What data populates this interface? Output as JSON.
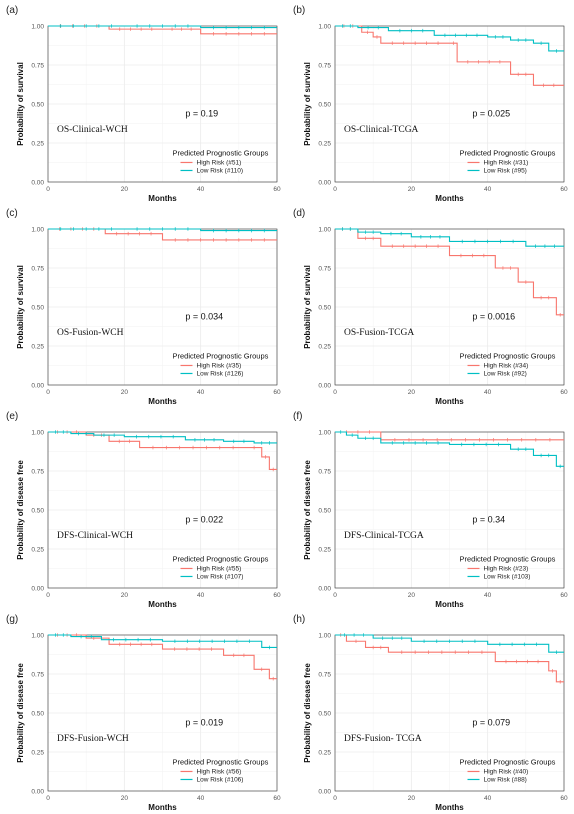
{
  "colors": {
    "high": "#F8766D",
    "low": "#00BFC4",
    "grid": "#EBEBEB",
    "axis": "#555555",
    "frame": "#333333"
  },
  "charts": [
    {
      "letter": "(a)",
      "label": "OS-Clinical-WCH",
      "pvalue": "p = 0.19",
      "ylabel": "Probability of survival",
      "xlabel": "Months",
      "legend_title": "Predicted Prognostic Groups",
      "chart_data": {
        "type": "line",
        "xlim": [
          0,
          60
        ],
        "ylim": [
          0,
          1
        ],
        "xticks": [
          "0",
          "20",
          "40",
          "60"
        ],
        "yticks": [
          "0.00",
          "0.25",
          "0.50",
          "0.75",
          "1.00"
        ],
        "series": [
          {
            "name": "High Risk (#51)",
            "color": "high",
            "x": [
              0,
              16,
              30,
              40,
              60
            ],
            "y": [
              1.0,
              0.98,
              0.98,
              0.95,
              0.95
            ]
          },
          {
            "name": "Low Risk (#110)",
            "color": "low",
            "x": [
              0,
              20,
              40,
              60
            ],
            "y": [
              1.0,
              1.0,
              0.99,
              0.99
            ]
          }
        ]
      }
    },
    {
      "letter": "(b)",
      "label": "OS-Clinical-TCGA",
      "pvalue": "p = 0.025",
      "ylabel": "Probability of survival",
      "xlabel": "Months",
      "legend_title": "Predicted Prognostic Groups",
      "chart_data": {
        "type": "line",
        "xlim": [
          0,
          60
        ],
        "ylim": [
          0,
          1
        ],
        "xticks": [
          "0",
          "20",
          "40",
          "60"
        ],
        "yticks": [
          "0.00",
          "0.25",
          "0.50",
          "0.75",
          "1.00"
        ],
        "series": [
          {
            "name": "High Risk (#31)",
            "color": "high",
            "x": [
              0,
              7,
              10,
              12,
              30,
              32,
              46,
              52,
              60
            ],
            "y": [
              1.0,
              0.96,
              0.93,
              0.89,
              0.89,
              0.77,
              0.69,
              0.62,
              0.62
            ]
          },
          {
            "name": "Low Risk (#95)",
            "color": "low",
            "x": [
              0,
              6,
              14,
              26,
              40,
              46,
              52,
              56,
              60
            ],
            "y": [
              1.0,
              0.99,
              0.97,
              0.94,
              0.93,
              0.91,
              0.89,
              0.84,
              0.84
            ]
          }
        ]
      }
    },
    {
      "letter": "(c)",
      "label": "OS-Fusion-WCH",
      "pvalue": "p = 0.034",
      "ylabel": "Probability of survival",
      "xlabel": "Months",
      "legend_title": "Predicted Prognostic Groups",
      "chart_data": {
        "type": "line",
        "xlim": [
          0,
          60
        ],
        "ylim": [
          0,
          1
        ],
        "xticks": [
          "0",
          "20",
          "40",
          "60"
        ],
        "yticks": [
          "0.00",
          "0.25",
          "0.50",
          "0.75",
          "1.00"
        ],
        "series": [
          {
            "name": "High Risk (#35)",
            "color": "high",
            "x": [
              0,
              15,
              30,
              60
            ],
            "y": [
              1.0,
              0.97,
              0.93,
              0.93
            ]
          },
          {
            "name": "Low Risk (#126)",
            "color": "low",
            "x": [
              0,
              20,
              40,
              60
            ],
            "y": [
              1.0,
              1.0,
              0.99,
              0.99
            ]
          }
        ]
      }
    },
    {
      "letter": "(d)",
      "label": "OS-Fusion-TCGA",
      "pvalue": "p = 0.0016",
      "ylabel": "Probability of survival",
      "xlabel": "Months",
      "legend_title": "Predicted Prognostic Groups",
      "chart_data": {
        "type": "line",
        "xlim": [
          0,
          60
        ],
        "ylim": [
          0,
          1
        ],
        "xticks": [
          "0",
          "20",
          "40",
          "60"
        ],
        "yticks": [
          "0.00",
          "0.25",
          "0.50",
          "0.75",
          "1.00"
        ],
        "series": [
          {
            "name": "High Risk (#34)",
            "color": "high",
            "x": [
              0,
              6,
              12,
              30,
              42,
              48,
              52,
              58,
              60
            ],
            "y": [
              1.0,
              0.94,
              0.89,
              0.83,
              0.75,
              0.66,
              0.56,
              0.45,
              0.45
            ]
          },
          {
            "name": "Low Risk (#92)",
            "color": "low",
            "x": [
              0,
              6,
              12,
              20,
              30,
              50,
              60
            ],
            "y": [
              1.0,
              0.98,
              0.97,
              0.95,
              0.92,
              0.89,
              0.89
            ]
          }
        ]
      }
    },
    {
      "letter": "(e)",
      "label": "DFS-Clinical-WCH",
      "pvalue": "p = 0.022",
      "ylabel": "Probability of disease free",
      "xlabel": "Months",
      "legend_title": "Predicted Prognostic Groups",
      "chart_data": {
        "type": "line",
        "xlim": [
          0,
          60
        ],
        "ylim": [
          0,
          1
        ],
        "xticks": [
          "0",
          "20",
          "40",
          "60"
        ],
        "yticks": [
          "0.00",
          "0.25",
          "0.50",
          "0.75",
          "1.00"
        ],
        "series": [
          {
            "name": "High Risk (#55)",
            "color": "high",
            "x": [
              0,
              10,
              16,
              24,
              52,
              56,
              58,
              60
            ],
            "y": [
              1.0,
              0.98,
              0.94,
              0.9,
              0.9,
              0.84,
              0.76,
              0.76
            ]
          },
          {
            "name": "Low Risk (#107)",
            "color": "low",
            "x": [
              0,
              6,
              12,
              20,
              36,
              46,
              54,
              60
            ],
            "y": [
              1.0,
              0.99,
              0.98,
              0.97,
              0.95,
              0.94,
              0.93,
              0.93
            ]
          }
        ]
      }
    },
    {
      "letter": "(f)",
      "label": "DFS-Clinical-TCGA",
      "pvalue": "p = 0.34",
      "ylabel": "Probability of disease free",
      "xlabel": "Months",
      "legend_title": "Predicted Prognostic Groups",
      "chart_data": {
        "type": "line",
        "xlim": [
          0,
          60
        ],
        "ylim": [
          0,
          1
        ],
        "xticks": [
          "0",
          "20",
          "40",
          "60"
        ],
        "yticks": [
          "0.00",
          "0.25",
          "0.50",
          "0.75",
          "1.00"
        ],
        "series": [
          {
            "name": "High Risk (#23)",
            "color": "high",
            "x": [
              0,
              12,
              60
            ],
            "y": [
              1.0,
              0.95,
              0.95
            ]
          },
          {
            "name": "Low Risk (#103)",
            "color": "low",
            "x": [
              0,
              3,
              6,
              12,
              30,
              46,
              52,
              58,
              60
            ],
            "y": [
              1.0,
              0.98,
              0.96,
              0.93,
              0.92,
              0.89,
              0.85,
              0.78,
              0.78
            ]
          }
        ]
      }
    },
    {
      "letter": "(g)",
      "label": "DFS-Fusion-WCH",
      "pvalue": "p = 0.019",
      "ylabel": "Probability of disease free",
      "xlabel": "Months",
      "legend_title": "Predicted Prognostic Groups",
      "chart_data": {
        "type": "line",
        "xlim": [
          0,
          60
        ],
        "ylim": [
          0,
          1
        ],
        "xticks": [
          "0",
          "20",
          "40",
          "60"
        ],
        "yticks": [
          "0.00",
          "0.25",
          "0.50",
          "0.75",
          "1.00"
        ],
        "series": [
          {
            "name": "High Risk (#56)",
            "color": "high",
            "x": [
              0,
              10,
              16,
              30,
              46,
              54,
              58,
              60
            ],
            "y": [
              1.0,
              0.98,
              0.94,
              0.91,
              0.87,
              0.78,
              0.72,
              0.72
            ]
          },
          {
            "name": "Low Risk (#106)",
            "color": "low",
            "x": [
              0,
              6,
              14,
              30,
              56,
              60
            ],
            "y": [
              1.0,
              0.99,
              0.97,
              0.96,
              0.92,
              0.92
            ]
          }
        ]
      }
    },
    {
      "letter": "(h)",
      "label": "DFS-Fusion- TCGA",
      "pvalue": "p = 0.079",
      "ylabel": "Probability of disease free",
      "xlabel": "Months",
      "legend_title": "Predicted Prognostic Groups",
      "chart_data": {
        "type": "line",
        "xlim": [
          0,
          60
        ],
        "ylim": [
          0,
          1
        ],
        "xticks": [
          "0",
          "20",
          "40",
          "60"
        ],
        "yticks": [
          "0.00",
          "0.25",
          "0.50",
          "0.75",
          "1.00"
        ],
        "series": [
          {
            "name": "High Risk (#40)",
            "color": "high",
            "x": [
              0,
              3,
              8,
              14,
              42,
              56,
              58,
              60
            ],
            "y": [
              1.0,
              0.96,
              0.92,
              0.89,
              0.83,
              0.77,
              0.7,
              0.7
            ]
          },
          {
            "name": "Low Risk (#88)",
            "color": "low",
            "x": [
              0,
              10,
              20,
              40,
              56,
              60
            ],
            "y": [
              1.0,
              0.98,
              0.96,
              0.94,
              0.89,
              0.89
            ]
          }
        ]
      }
    }
  ]
}
